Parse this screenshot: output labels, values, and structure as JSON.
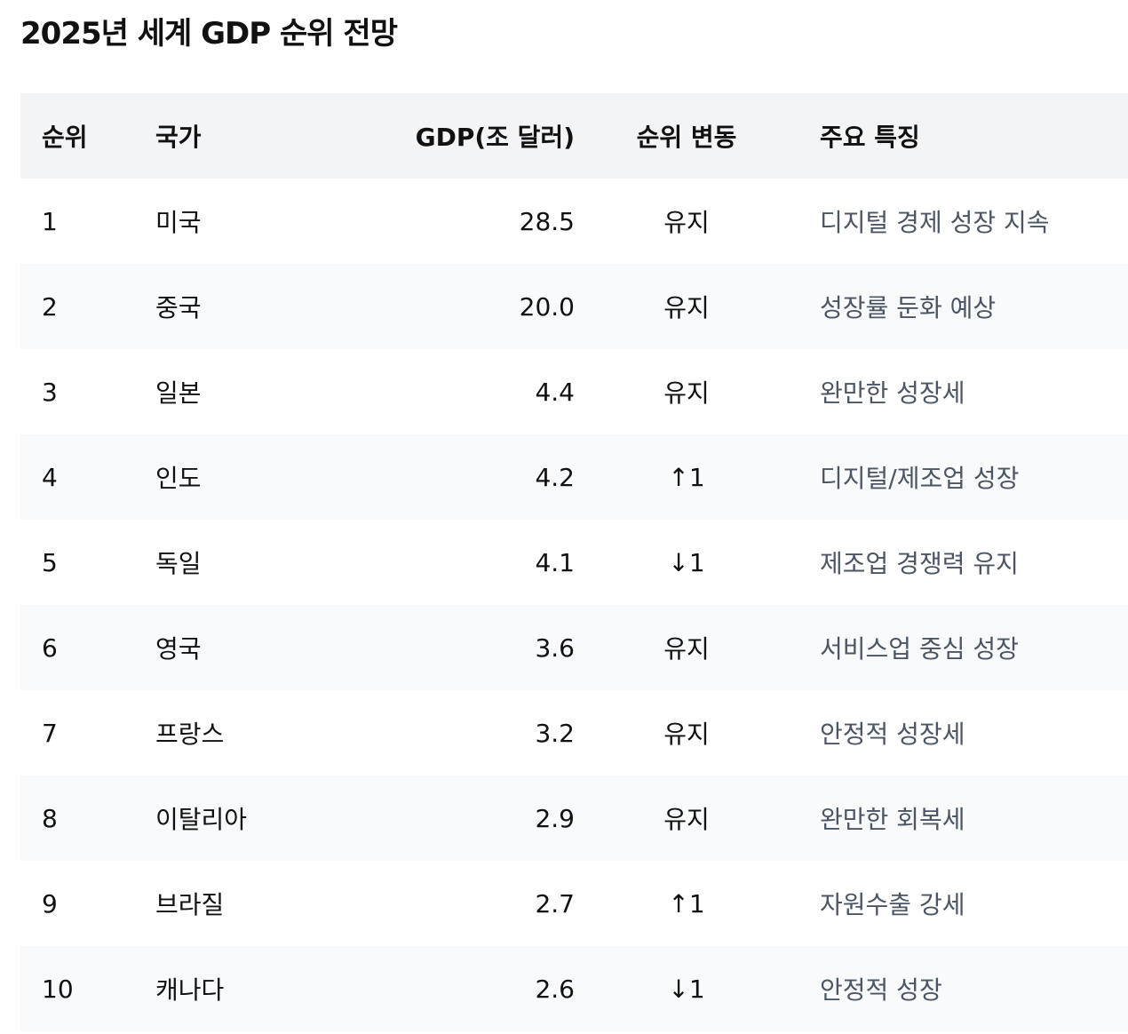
{
  "title": "2025년 세계 GDP 순위 전망",
  "table": {
    "headers": {
      "rank": "순위",
      "country": "국가",
      "gdp": "GDP(조 달러)",
      "change": "순위 변동",
      "feature": "주요 특징"
    },
    "rows": [
      {
        "rank": "1",
        "country": "미국",
        "gdp": "28.5",
        "change": "유지",
        "feature": "디지털 경제 성장 지속"
      },
      {
        "rank": "2",
        "country": "중국",
        "gdp": "20.0",
        "change": "유지",
        "feature": "성장률 둔화 예상"
      },
      {
        "rank": "3",
        "country": "일본",
        "gdp": "4.4",
        "change": "유지",
        "feature": "완만한 성장세"
      },
      {
        "rank": "4",
        "country": "인도",
        "gdp": "4.2",
        "change": "↑1",
        "feature": "디지털/제조업 성장"
      },
      {
        "rank": "5",
        "country": "독일",
        "gdp": "4.1",
        "change": "↓1",
        "feature": "제조업 경쟁력 유지"
      },
      {
        "rank": "6",
        "country": "영국",
        "gdp": "3.6",
        "change": "유지",
        "feature": "서비스업 중심 성장"
      },
      {
        "rank": "7",
        "country": "프랑스",
        "gdp": "3.2",
        "change": "유지",
        "feature": "안정적 성장세"
      },
      {
        "rank": "8",
        "country": "이탈리아",
        "gdp": "2.9",
        "change": "유지",
        "feature": "완만한 회복세"
      },
      {
        "rank": "9",
        "country": "브라질",
        "gdp": "2.7",
        "change": "↑1",
        "feature": "자원수출 강세"
      },
      {
        "rank": "10",
        "country": "캐나다",
        "gdp": "2.6",
        "change": "↓1",
        "feature": "안정적 성장"
      }
    ]
  },
  "colors": {
    "header_bg": "#f3f4f6",
    "stripe_bg": "#f9fafb",
    "text": "#111111",
    "muted_text": "#4b5563"
  }
}
